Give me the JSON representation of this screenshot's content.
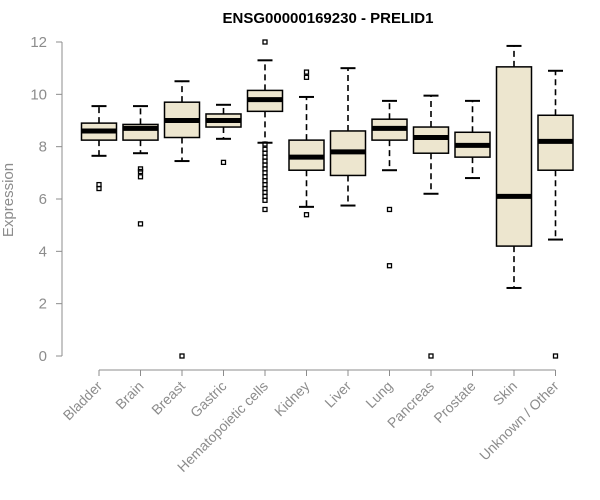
{
  "chart_data": {
    "type": "boxplot",
    "title": "ENSG00000169230 - PRELID1",
    "ylabel": "Expression",
    "xlabel": "",
    "ylim": [
      0,
      12
    ],
    "yticks": [
      "0",
      "2",
      "4",
      "6",
      "8",
      "10",
      "12"
    ],
    "box_color": "#ede6cf",
    "categories": [
      "Bladder",
      "Brain",
      "Breast",
      "Gastric",
      "Hematopoietic cells",
      "Kidney",
      "Liver",
      "Lung",
      "Pancreas",
      "Prostate",
      "Skin",
      "Unknown / Other"
    ],
    "boxes": [
      {
        "low": 7.65,
        "q1": 8.25,
        "median": 8.6,
        "q3": 8.9,
        "high": 9.55,
        "outliers": [
          6.4,
          6.55
        ]
      },
      {
        "low": 7.75,
        "q1": 8.25,
        "median": 8.7,
        "q3": 8.85,
        "high": 9.55,
        "outliers": [
          7.15,
          7.05,
          6.85,
          5.05
        ]
      },
      {
        "low": 7.45,
        "q1": 8.35,
        "median": 9.0,
        "q3": 9.7,
        "high": 10.5,
        "outliers": [
          0.0
        ]
      },
      {
        "low": 8.3,
        "q1": 8.75,
        "median": 9.0,
        "q3": 9.25,
        "high": 9.6,
        "outliers": [
          7.4
        ]
      },
      {
        "low": 8.15,
        "q1": 9.35,
        "median": 9.8,
        "q3": 10.15,
        "high": 11.3,
        "outliers": [
          12.0,
          8.1,
          7.9,
          7.75,
          7.6,
          7.45,
          7.3,
          7.15,
          7.0,
          6.85,
          6.7,
          6.55,
          6.4,
          6.25,
          6.1,
          5.95,
          5.6
        ]
      },
      {
        "low": 5.7,
        "q1": 7.1,
        "median": 7.6,
        "q3": 8.25,
        "high": 9.9,
        "outliers": [
          10.85,
          10.65,
          5.4
        ]
      },
      {
        "low": 5.75,
        "q1": 6.9,
        "median": 7.8,
        "q3": 8.6,
        "high": 11.0,
        "outliers": []
      },
      {
        "low": 7.1,
        "q1": 8.25,
        "median": 8.7,
        "q3": 9.05,
        "high": 9.75,
        "outliers": [
          5.6,
          3.45
        ]
      },
      {
        "low": 6.2,
        "q1": 7.75,
        "median": 8.35,
        "q3": 8.75,
        "high": 9.95,
        "outliers": [
          0.0
        ]
      },
      {
        "low": 6.8,
        "q1": 7.6,
        "median": 8.05,
        "q3": 8.55,
        "high": 9.75,
        "outliers": []
      },
      {
        "low": 2.6,
        "q1": 4.2,
        "median": 6.1,
        "q3": 11.05,
        "high": 11.85,
        "outliers": []
      },
      {
        "low": 4.45,
        "q1": 7.1,
        "median": 8.2,
        "q3": 9.2,
        "high": 10.9,
        "outliers": [
          0.0
        ]
      }
    ]
  }
}
